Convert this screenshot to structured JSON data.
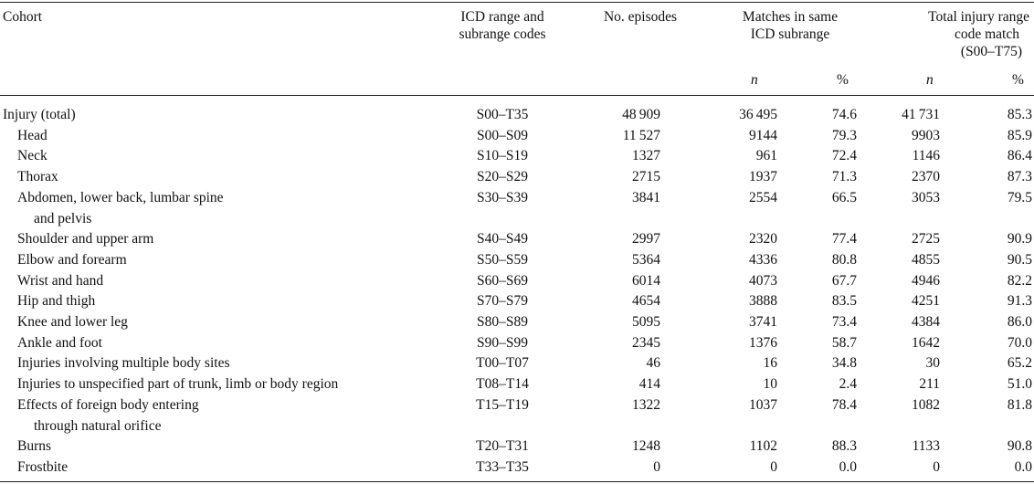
{
  "table": {
    "headers": {
      "cohort": "Cohort",
      "icd_line1": "ICD range and",
      "icd_line2": "subrange codes",
      "episodes": "No. episodes",
      "matches_line1": "Matches in same",
      "matches_line2": "ICD subrange",
      "total_line1": "Total injury range",
      "total_line2": "code match",
      "total_line3": "(S00–T75)",
      "n": "n",
      "pct": "%"
    },
    "rows": [
      {
        "label": "Injury (total)",
        "label2": "",
        "icd": "S00–T35",
        "episodes": "48 909",
        "m_n": "36 495",
        "m_pct": "74.6",
        "t_n": "41 731",
        "t_pct": "85.3"
      },
      {
        "label": "Head",
        "label2": "",
        "icd": "S00–S09",
        "episodes": "11 527",
        "m_n": "9144",
        "m_pct": "79.3",
        "t_n": "9903",
        "t_pct": "85.9"
      },
      {
        "label": "Neck",
        "label2": "",
        "icd": "S10–S19",
        "episodes": "1327",
        "m_n": "961",
        "m_pct": "72.4",
        "t_n": "1146",
        "t_pct": "86.4"
      },
      {
        "label": "Thorax",
        "label2": "",
        "icd": "S20–S29",
        "episodes": "2715",
        "m_n": "1937",
        "m_pct": "71.3",
        "t_n": "2370",
        "t_pct": "87.3"
      },
      {
        "label": "Abdomen, lower back, lumbar spine",
        "label2": "and pelvis",
        "icd": "S30–S39",
        "episodes": "3841",
        "m_n": "2554",
        "m_pct": "66.5",
        "t_n": "3053",
        "t_pct": "79.5"
      },
      {
        "label": "Shoulder and upper arm",
        "label2": "",
        "icd": "S40–S49",
        "episodes": "2997",
        "m_n": "2320",
        "m_pct": "77.4",
        "t_n": "2725",
        "t_pct": "90.9"
      },
      {
        "label": "Elbow and forearm",
        "label2": "",
        "icd": "S50–S59",
        "episodes": "5364",
        "m_n": "4336",
        "m_pct": "80.8",
        "t_n": "4855",
        "t_pct": "90.5"
      },
      {
        "label": "Wrist and hand",
        "label2": "",
        "icd": "S60–S69",
        "episodes": "6014",
        "m_n": "4073",
        "m_pct": "67.7",
        "t_n": "4946",
        "t_pct": "82.2"
      },
      {
        "label": "Hip and thigh",
        "label2": "",
        "icd": "S70–S79",
        "episodes": "4654",
        "m_n": "3888",
        "m_pct": "83.5",
        "t_n": "4251",
        "t_pct": "91.3"
      },
      {
        "label": "Knee and lower leg",
        "label2": "",
        "icd": "S80–S89",
        "episodes": "5095",
        "m_n": "3741",
        "m_pct": "73.4",
        "t_n": "4384",
        "t_pct": "86.0"
      },
      {
        "label": "Ankle and foot",
        "label2": "",
        "icd": "S90–S99",
        "episodes": "2345",
        "m_n": "1376",
        "m_pct": "58.7",
        "t_n": "1642",
        "t_pct": "70.0"
      },
      {
        "label": "Injuries involving multiple body sites",
        "label2": "",
        "icd": "T00–T07",
        "episodes": "46",
        "m_n": "16",
        "m_pct": "34.8",
        "t_n": "30",
        "t_pct": "65.2"
      },
      {
        "label": "Injuries to unspecified part of trunk, limb or body region",
        "label2": "",
        "icd": "T08–T14",
        "episodes": "414",
        "m_n": "10",
        "m_pct": "2.4",
        "t_n": "211",
        "t_pct": "51.0"
      },
      {
        "label": "Effects of foreign body entering",
        "label2": "through natural orifice",
        "icd": "T15–T19",
        "episodes": "1322",
        "m_n": "1037",
        "m_pct": "78.4",
        "t_n": "1082",
        "t_pct": "81.8"
      },
      {
        "label": "Burns",
        "label2": "",
        "icd": "T20–T31",
        "episodes": "1248",
        "m_n": "1102",
        "m_pct": "88.3",
        "t_n": "1133",
        "t_pct": "90.8"
      },
      {
        "label": "Frostbite",
        "label2": "",
        "icd": "T33–T35",
        "episodes": "0",
        "m_n": "0",
        "m_pct": "0.0",
        "t_n": "0",
        "t_pct": "0.0"
      }
    ]
  }
}
